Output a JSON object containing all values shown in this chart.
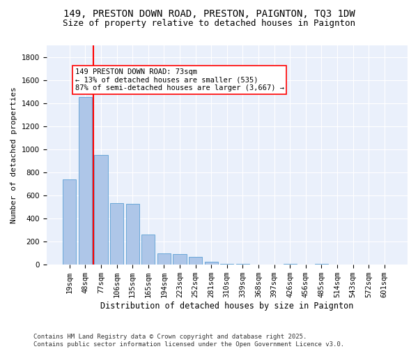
{
  "title1": "149, PRESTON DOWN ROAD, PRESTON, PAIGNTON, TQ3 1DW",
  "title2": "Size of property relative to detached houses in Paignton",
  "xlabel": "Distribution of detached houses by size in Paignton",
  "ylabel": "Number of detached properties",
  "categories": [
    "19sqm",
    "48sqm",
    "77sqm",
    "106sqm",
    "135sqm",
    "165sqm",
    "194sqm",
    "223sqm",
    "252sqm",
    "281sqm",
    "310sqm",
    "339sqm",
    "368sqm",
    "397sqm",
    "426sqm",
    "456sqm",
    "485sqm",
    "514sqm",
    "543sqm",
    "572sqm",
    "601sqm"
  ],
  "values": [
    740,
    1450,
    950,
    535,
    530,
    260,
    100,
    90,
    65,
    25,
    5,
    5,
    3,
    3,
    5,
    3,
    5,
    3,
    3,
    3,
    3
  ],
  "bar_color": "#aec6e8",
  "bar_edge_color": "#5a9fd4",
  "vline_color": "red",
  "ylim": [
    0,
    1900
  ],
  "yticks": [
    0,
    200,
    400,
    600,
    800,
    1000,
    1200,
    1400,
    1600,
    1800
  ],
  "annotation_text": "149 PRESTON DOWN ROAD: 73sqm\n← 13% of detached houses are smaller (535)\n87% of semi-detached houses are larger (3,667) →",
  "annotation_box_color": "white",
  "annotation_box_edge": "red",
  "footer1": "Contains HM Land Registry data © Crown copyright and database right 2025.",
  "footer2": "Contains public sector information licensed under the Open Government Licence v3.0.",
  "bg_color": "#eaf0fb",
  "grid_color": "white",
  "title1_fontsize": 10,
  "title2_fontsize": 9,
  "xlabel_fontsize": 8.5,
  "ylabel_fontsize": 8,
  "tick_fontsize": 7.5,
  "annotation_fontsize": 7.5,
  "footer_fontsize": 6.5
}
